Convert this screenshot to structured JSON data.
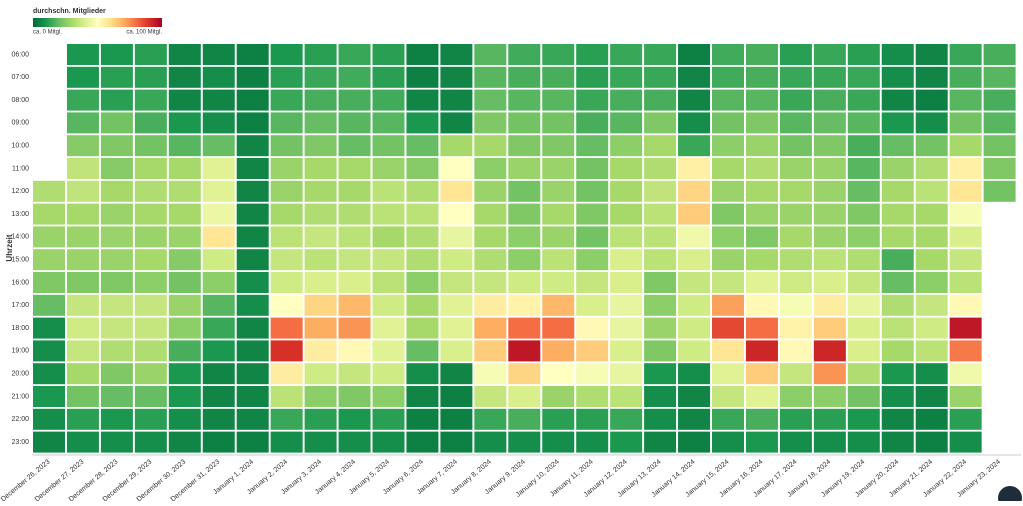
{
  "chart_data": {
    "type": "heatmap",
    "legend_title": "durchschn. Mitglieder",
    "legend_min_label": "ca. 0 Mitgl.",
    "legend_max_label": "ca. 100 Mitgl.",
    "y_label": "Uhrzeit",
    "zlim": [
      0,
      100
    ],
    "colorscale": [
      "#006837",
      "#1a9850",
      "#66bd63",
      "#a6d96a",
      "#d9ef8b",
      "#ffffbf",
      "#fee08b",
      "#fdae61",
      "#f46d43",
      "#d73027",
      "#a50026"
    ],
    "x": [
      "December 26, 2023",
      "December 27, 2023",
      "December 28, 2023",
      "December 29, 2023",
      "December 30, 2023",
      "December 31, 2023",
      "January 1, 2024",
      "January 2, 2024",
      "January 3, 2024",
      "January 4, 2024",
      "January 5, 2024",
      "January 6, 2024",
      "January 7, 2024",
      "January 8, 2024",
      "January 9, 2024",
      "January 10, 2024",
      "January 11, 2024",
      "January 12, 2024",
      "January 13, 2024",
      "January 14, 2024",
      "January 15, 2024",
      "January 16, 2024",
      "January 17, 2024",
      "January 18, 2024",
      "January 19, 2024",
      "January 20, 2024",
      "January 21, 2024",
      "January 22, 2024",
      "January 23, 2024"
    ],
    "y": [
      "06:00",
      "07:00",
      "08:00",
      "09:00",
      "10:00",
      "11:00",
      "12:00",
      "13:00",
      "14:00",
      "15:00",
      "16:00",
      "17:00",
      "18:00",
      "19:00",
      "20:00",
      "21:00",
      "22:00",
      "23:00"
    ],
    "values": [
      [
        null,
        10,
        10,
        12,
        6,
        6,
        5,
        10,
        12,
        14,
        12,
        5,
        6,
        18,
        15,
        14,
        12,
        14,
        14,
        5,
        15,
        16,
        12,
        14,
        12,
        8,
        6,
        14,
        16
      ],
      [
        null,
        10,
        12,
        12,
        6,
        8,
        5,
        12,
        14,
        15,
        12,
        5,
        6,
        18,
        16,
        16,
        12,
        14,
        14,
        6,
        15,
        16,
        14,
        14,
        14,
        8,
        6,
        16,
        18
      ],
      [
        null,
        14,
        12,
        14,
        6,
        6,
        5,
        14,
        16,
        16,
        15,
        6,
        6,
        20,
        18,
        18,
        14,
        16,
        16,
        6,
        18,
        18,
        14,
        16,
        14,
        6,
        5,
        18,
        16
      ],
      [
        null,
        18,
        22,
        16,
        10,
        8,
        5,
        18,
        20,
        18,
        18,
        10,
        6,
        24,
        22,
        22,
        16,
        18,
        24,
        8,
        22,
        24,
        18,
        20,
        18,
        10,
        8,
        22,
        18
      ],
      [
        null,
        25,
        24,
        22,
        18,
        20,
        6,
        22,
        24,
        20,
        22,
        20,
        30,
        30,
        24,
        24,
        20,
        26,
        30,
        14,
        26,
        28,
        22,
        24,
        16,
        20,
        22,
        30,
        22
      ],
      [
        null,
        35,
        25,
        30,
        30,
        42,
        6,
        28,
        30,
        30,
        28,
        25,
        50,
        26,
        28,
        28,
        22,
        30,
        32,
        55,
        30,
        32,
        28,
        28,
        18,
        28,
        32,
        55,
        24
      ],
      [
        32,
        35,
        30,
        32,
        32,
        42,
        6,
        28,
        30,
        30,
        34,
        32,
        58,
        28,
        22,
        28,
        22,
        30,
        35,
        62,
        28,
        30,
        30,
        28,
        20,
        30,
        34,
        58,
        22
      ],
      [
        30,
        30,
        28,
        30,
        30,
        45,
        6,
        30,
        32,
        32,
        34,
        34,
        50,
        30,
        24,
        30,
        24,
        30,
        34,
        64,
        24,
        28,
        28,
        28,
        24,
        30,
        30,
        48,
        null
      ],
      [
        28,
        28,
        28,
        28,
        28,
        58,
        6,
        34,
        36,
        34,
        30,
        32,
        44,
        30,
        26,
        28,
        22,
        34,
        34,
        46,
        26,
        24,
        30,
        28,
        26,
        30,
        30,
        40,
        null
      ],
      [
        28,
        28,
        28,
        30,
        25,
        38,
        6,
        36,
        34,
        36,
        36,
        32,
        38,
        32,
        26,
        34,
        26,
        40,
        34,
        40,
        28,
        30,
        32,
        34,
        32,
        16,
        30,
        36,
        null
      ],
      [
        24,
        24,
        24,
        26,
        22,
        26,
        8,
        38,
        40,
        40,
        34,
        26,
        36,
        36,
        38,
        38,
        36,
        40,
        24,
        36,
        36,
        42,
        38,
        40,
        36,
        20,
        26,
        34,
        null
      ],
      [
        20,
        36,
        36,
        36,
        28,
        18,
        8,
        50,
        62,
        68,
        38,
        30,
        42,
        56,
        54,
        68,
        40,
        44,
        26,
        38,
        72,
        52,
        48,
        56,
        44,
        32,
        36,
        52,
        null
      ],
      [
        8,
        38,
        36,
        36,
        26,
        14,
        6,
        80,
        70,
        74,
        42,
        30,
        42,
        70,
        80,
        80,
        52,
        44,
        28,
        38,
        86,
        80,
        54,
        64,
        40,
        34,
        38,
        95,
        null
      ],
      [
        8,
        36,
        32,
        32,
        16,
        10,
        6,
        90,
        56,
        52,
        42,
        20,
        40,
        64,
        95,
        70,
        64,
        40,
        24,
        38,
        58,
        92,
        52,
        92,
        40,
        30,
        34,
        78,
        null
      ],
      [
        8,
        30,
        24,
        28,
        10,
        6,
        6,
        56,
        38,
        36,
        38,
        8,
        6,
        48,
        62,
        50,
        48,
        44,
        10,
        8,
        42,
        64,
        36,
        74,
        32,
        10,
        8,
        46,
        null
      ],
      [
        10,
        22,
        20,
        20,
        10,
        6,
        6,
        34,
        26,
        24,
        26,
        6,
        5,
        36,
        40,
        28,
        32,
        34,
        8,
        6,
        36,
        42,
        26,
        26,
        22,
        8,
        6,
        28,
        null
      ],
      [
        8,
        12,
        10,
        12,
        8,
        6,
        6,
        14,
        12,
        10,
        12,
        5,
        5,
        14,
        16,
        12,
        12,
        14,
        8,
        6,
        14,
        16,
        12,
        12,
        10,
        6,
        5,
        12,
        null
      ],
      [
        6,
        8,
        8,
        8,
        6,
        5,
        5,
        8,
        8,
        8,
        8,
        5,
        5,
        8,
        8,
        8,
        8,
        10,
        6,
        5,
        8,
        10,
        8,
        8,
        8,
        6,
        5,
        8,
        null
      ]
    ]
  }
}
